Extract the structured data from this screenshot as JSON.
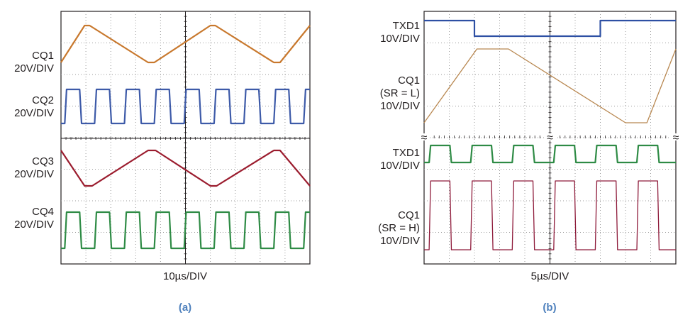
{
  "chart_data": [
    {
      "type": "line",
      "panel": "(a)",
      "xlabel": "10µs/DIV",
      "grid": true,
      "divisions": {
        "x": 10,
        "y": 8
      },
      "series": [
        {
          "name": "CQ1",
          "scale": "20V/DIV",
          "color": "#c8782d",
          "kind": "slew",
          "levels": [
            0,
            1
          ],
          "x_div": [
            0.0,
            1.9,
            2.3,
            7.0,
            7.5,
            12.0,
            12.4,
            17.1,
            17.6,
            20.0
          ]
        },
        {
          "name": "CQ2",
          "scale": "20V/DIV",
          "color": "#3d5aa8",
          "kind": "square",
          "period_div": 2.4,
          "duty": 0.5
        },
        {
          "name": "CQ3",
          "scale": "20V/DIV",
          "color": "#9b1c2e",
          "kind": "slew",
          "levels": [
            1,
            0
          ],
          "x_div": [
            0.0,
            1.9,
            2.5,
            7.0,
            7.6,
            12.0,
            12.5,
            17.1,
            17.6,
            20.0
          ]
        },
        {
          "name": "CQ4",
          "scale": "20V/DIV",
          "color": "#2e8b45",
          "kind": "square",
          "period_div": 2.4,
          "duty": 0.5
        }
      ]
    },
    {
      "type": "line",
      "panel": "(b)",
      "xlabel": "5µs/DIV",
      "grid": true,
      "divisions": {
        "x": 10,
        "y": 8
      },
      "series": [
        {
          "name": "TXD1",
          "scale": "10V/DIV",
          "color": "#2d4fa3",
          "kind": "step",
          "x_div": [
            0,
            4.0,
            4.0,
            14.0,
            14.0,
            20.0
          ],
          "v": [
            1,
            1,
            0,
            0,
            1,
            1
          ]
        },
        {
          "name": "CQ1 (SR = L)",
          "scale": "10V/DIV",
          "color": "#b88750",
          "kind": "slew",
          "levels": [
            0,
            1
          ],
          "x_div": [
            0.0,
            4.2,
            6.7,
            16.0,
            17.7,
            20.0
          ]
        },
        {
          "name": "TXD1",
          "scale": "10V/DIV",
          "color": "#2e8b45",
          "kind": "square",
          "period_div": 3.3,
          "duty": 0.5
        },
        {
          "name": "CQ1 (SR = H)",
          "scale": "10V/DIV",
          "color": "#8e1a3a",
          "kind": "square",
          "period_div": 3.3,
          "duty": 0.5
        }
      ]
    }
  ],
  "labels_a": [
    {
      "line1": "CQ1",
      "line2": "20V/DIV"
    },
    {
      "line1": "CQ2",
      "line2": "20V/DIV"
    },
    {
      "line1": "CQ3",
      "line2": "20V/DIV"
    },
    {
      "line1": "CQ4",
      "line2": "20V/DIV"
    }
  ],
  "labels_b": {
    "txd1_top": {
      "line1": "TXD1",
      "line2": "10V/DIV"
    },
    "cq1_l": {
      "line1": "CQ1",
      "line2": "(SR = L)",
      "line3": "10V/DIV"
    },
    "txd1_bot": {
      "line1": "TXD1",
      "line2": "10V/DIV"
    },
    "cq1_h": {
      "line1": "CQ1",
      "line2": "(SR = H)",
      "line3": "10V/DIV"
    }
  },
  "captions": {
    "a": "(a)",
    "b": "(b)"
  },
  "break_marks": "≈"
}
